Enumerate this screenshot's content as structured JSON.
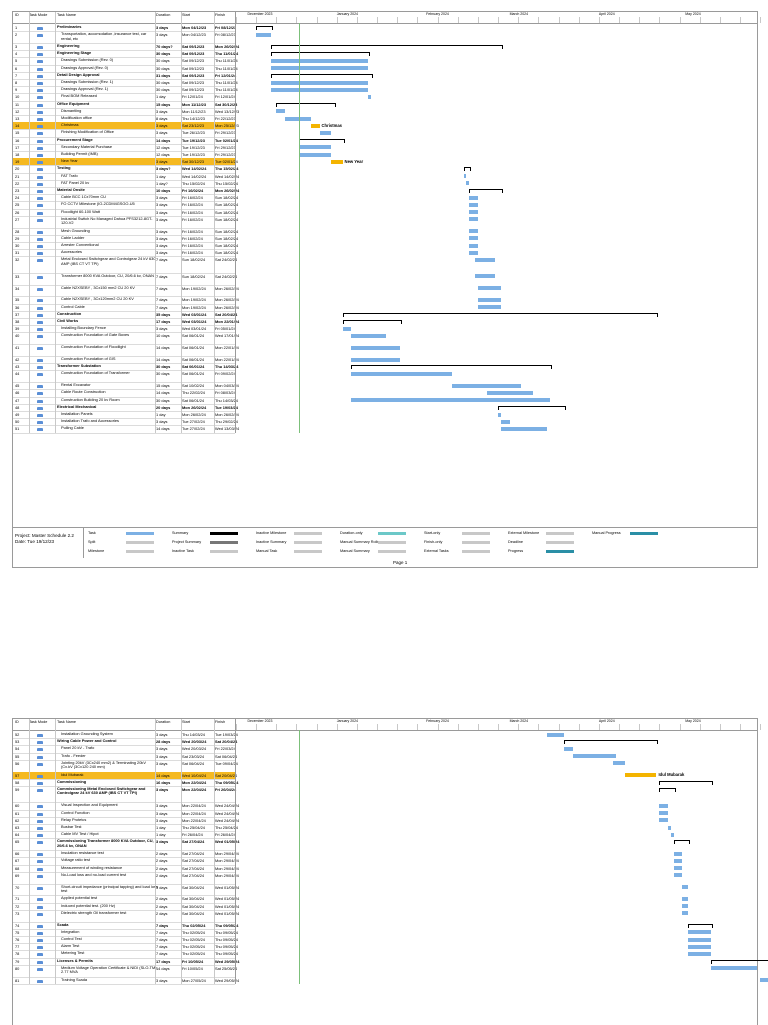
{
  "header": {
    "id": "ID",
    "mode": "Task Mode",
    "name": "Task Name",
    "duration": "Duration",
    "start": "Start",
    "finish": "Finish"
  },
  "months": [
    "December 2023",
    "January 2024",
    "February 2024",
    "March 2024",
    "April 2024",
    "May 2024"
  ],
  "rows1": [
    {
      "id": "1",
      "name": "Preliminaries",
      "dur": "3 days",
      "st": "Mon 04/12/23",
      "fi": "Fri 08/12/23",
      "bold": true
    },
    {
      "id": "2",
      "name": "Transportation, accomodation ,insurance test, car rental, etc",
      "dur": "3 days",
      "st": "Mon 04/12/23",
      "fi": "Fri 08/12/23"
    },
    {
      "id": "3",
      "name": "Engineering",
      "dur": "70 days?",
      "st": "Sat 09/12/23",
      "fi": "Mon 26/02/24",
      "bold": true
    },
    {
      "id": "4",
      "name": "Engineering Stage",
      "dur": "30 days",
      "st": "Sat 09/12/23",
      "fi": "Thu 11/01/24",
      "bold": true
    },
    {
      "id": "5",
      "name": "Drawings Submission (Rev. 0)",
      "dur": "30 days",
      "st": "Sat 09/12/23",
      "fi": "Thu 11/01/24"
    },
    {
      "id": "6",
      "name": "Drawings Approval (Rev. 0)",
      "dur": "30 days",
      "st": "Sat 09/12/23",
      "fi": "Thu 11/01/24"
    },
    {
      "id": "7",
      "name": "Detail Design Approval",
      "dur": "31 days",
      "st": "Sat 09/12/23",
      "fi": "Fri 12/01/24",
      "bold": true
    },
    {
      "id": "8",
      "name": "Drawings Submission (Rev. 1)",
      "dur": "30 days",
      "st": "Sat 09/12/23",
      "fi": "Thu 11/01/24"
    },
    {
      "id": "9",
      "name": "Drawings Approval (Rev. 1)",
      "dur": "30 days",
      "st": "Sat 09/12/23",
      "fi": "Thu 11/01/24"
    },
    {
      "id": "10",
      "name": "Final BOM Released",
      "dur": "1 day",
      "st": "Fri 12/01/24",
      "fi": "Fri 12/01/24"
    },
    {
      "id": "11",
      "name": "Office Equipment",
      "dur": "15 days",
      "st": "Mon 11/12/23",
      "fi": "Sat 30/12/23",
      "bold": true
    },
    {
      "id": "12",
      "name": "Dismantling",
      "dur": "3 days",
      "st": "Mon 11/12/23",
      "fi": "Wed 13/12/23"
    },
    {
      "id": "13",
      "name": "Modification office",
      "dur": "8 days",
      "st": "Thu 14/12/23",
      "fi": "Fri 22/12/23"
    },
    {
      "id": "14",
      "name": "Christmas",
      "dur": "3 days",
      "st": "Sat 23/12/23",
      "fi": "Mon 25/12/23",
      "hl": true
    },
    {
      "id": "15",
      "name": "Finishing Modification of Office",
      "dur": "3 days",
      "st": "Tue 26/12/23",
      "fi": "Fri 29/12/23"
    },
    {
      "id": "16",
      "name": "Procurement Stage",
      "dur": "14 days",
      "st": "Tue 19/12/23",
      "fi": "Tue 02/01/24",
      "bold": true
    },
    {
      "id": "17",
      "name": "Secondary Material Purchase",
      "dur": "12 days",
      "st": "Tue 19/12/23",
      "fi": "Fri 29/12/23"
    },
    {
      "id": "18",
      "name": "Building Permit (IMB)",
      "dur": "12 days",
      "st": "Tue 19/12/23",
      "fi": "Fri 29/12/23"
    },
    {
      "id": "19",
      "name": "New Year",
      "dur": "3 days",
      "st": "Sat 30/12/23",
      "fi": "Tue 02/01/24",
      "hl": true
    },
    {
      "id": "20",
      "name": "Testing",
      "dur": "3 days?",
      "st": "Wed 14/02/24",
      "fi": "Thu 15/02/24",
      "bold": true
    },
    {
      "id": "21",
      "name": "FAT Trafo",
      "dur": "1 day",
      "st": "Wed 14/02/24",
      "fi": "Wed 14/02/24"
    },
    {
      "id": "22",
      "name": "FAT Panel 20 kv",
      "dur": "1 day?",
      "st": "Thu 15/02/24",
      "fi": "Thu 15/02/24"
    },
    {
      "id": "23",
      "name": "Material Onsite",
      "dur": "10 days",
      "st": "Fri 16/02/24",
      "fi": "Mon 26/02/24",
      "bold": true
    },
    {
      "id": "24",
      "name": "Cable BCC 1Cx70mm CU",
      "dur": "3 days",
      "st": "Fri 16/02/24",
      "fi": "Sun 18/02/24"
    },
    {
      "id": "25",
      "name": "FO CCTV Milestone (IO-2CDM4GSGO-U5",
      "dur": "3 days",
      "st": "Fri 16/02/24",
      "fi": "Sun 18/02/24"
    },
    {
      "id": "26",
      "name": "Floodlight 60-100 Watt",
      "dur": "3 days",
      "st": "Fri 16/02/24",
      "fi": "Sun 18/02/24"
    },
    {
      "id": "27",
      "name": "Industrial Switch No Managed Dahua PFS3212-8GT-120-V2",
      "dur": "3 days",
      "st": "Fri 16/02/24",
      "fi": "Sun 18/02/24"
    },
    {
      "id": "28",
      "name": "Mesh Grounding",
      "dur": "3 days",
      "st": "Fri 16/02/24",
      "fi": "Sun 18/02/24"
    },
    {
      "id": "29",
      "name": "Cable Ladder",
      "dur": "3 days",
      "st": "Fri 16/02/24",
      "fi": "Sun 18/02/24"
    },
    {
      "id": "30",
      "name": "Arrester Conventional",
      "dur": "3 days",
      "st": "Fri 16/02/24",
      "fi": "Sun 18/02/24"
    },
    {
      "id": "31",
      "name": "Accessories",
      "dur": "3 days",
      "st": "Fri 16/02/24",
      "fi": "Sun 18/02/24"
    },
    {
      "id": "32",
      "name": "Metal Enclosed Switchgear and Controlgear 24 kV 630 AMP (IBS CT VT TPI)",
      "dur": "7 days",
      "st": "Sun 18/02/24",
      "fi": "Sat 24/02/24"
    },
    {
      "id": "33",
      "name": "Transformer 8000 KVA Outdoor, CU, 20/6.6 kv, ONAN",
      "dur": "7 days",
      "st": "Sun 18/02/24",
      "fi": "Sat 24/02/24"
    },
    {
      "id": "34",
      "name": "Cable N2XSEBY , 3Cx150 mm2 CU 20 KV",
      "dur": "7 days",
      "st": "Mon 19/02/24",
      "fi": "Mon 26/02/24"
    },
    {
      "id": "35",
      "name": "Cable N2XSEBY , 3Cx120mm2 CU 20 KV",
      "dur": "7 days",
      "st": "Mon 19/02/24",
      "fi": "Mon 26/02/24"
    },
    {
      "id": "36",
      "name": "Control Cable",
      "dur": "7 days",
      "st": "Mon 19/02/24",
      "fi": "Mon 26/02/24"
    },
    {
      "id": "37",
      "name": "Construction",
      "dur": "35 days",
      "st": "Wed 03/01/24",
      "fi": "Sat 20/04/24",
      "bold": true
    },
    {
      "id": "38",
      "name": "Civil Works",
      "dur": "17 days",
      "st": "Wed 03/01/24",
      "fi": "Mon 22/01/24",
      "bold": true
    },
    {
      "id": "39",
      "name": "Installing Boundary Fence",
      "dur": "3 days",
      "st": "Wed 03/01/24",
      "fi": "Fri 05/01/24"
    },
    {
      "id": "40",
      "name": "Construction Foundation of Gate Boxes",
      "dur": "10 days",
      "st": "Sat 06/01/24",
      "fi": "Wed 17/01/24"
    },
    {
      "id": "41",
      "name": "Construction Foundation of Floodlight",
      "dur": "14 days",
      "st": "Sat 06/01/24",
      "fi": "Mon 22/01/24"
    },
    {
      "id": "42",
      "name": "Construction Foundation of GIS",
      "dur": "14 days",
      "st": "Sat 06/01/24",
      "fi": "Mon 22/01/24"
    },
    {
      "id": "43",
      "name": "Transformer Substation",
      "dur": "30 days",
      "st": "Sat 06/01/24",
      "fi": "Thu 14/03/24",
      "bold": true
    },
    {
      "id": "44",
      "name": "Construction Foundation of Transformer",
      "dur": "30 days",
      "st": "Sat 06/01/24",
      "fi": "Fri 09/02/24"
    },
    {
      "id": "45",
      "name": "Rental Excavator",
      "dur": "15 days",
      "st": "Sat 10/02/24",
      "fi": "Mon 04/03/24"
    },
    {
      "id": "46",
      "name": "Cable Route Construction",
      "dur": "14 days",
      "st": "Thu 22/02/24",
      "fi": "Fri 08/03/24"
    },
    {
      "id": "47",
      "name": "Construction Building 20 kv Room",
      "dur": "30 days",
      "st": "Sat 06/01/24",
      "fi": "Thu 14/03/24"
    },
    {
      "id": "48",
      "name": "Electrical Mechanical",
      "dur": "20 days",
      "st": "Mon 26/02/24",
      "fi": "Tue 19/03/24",
      "bold": true
    },
    {
      "id": "49",
      "name": "Installation Panels",
      "dur": "1 day",
      "st": "Mon 26/02/24",
      "fi": "Mon 26/02/24"
    },
    {
      "id": "50",
      "name": "Installation Trafo and Accessories",
      "dur": "3 days",
      "st": "Tue 27/02/24",
      "fi": "Thu 29/02/24"
    },
    {
      "id": "51",
      "name": "Pulling Cable",
      "dur": "14 days",
      "st": "Tue 27/02/24",
      "fi": "Wed 13/03/24"
    }
  ],
  "rows2": [
    {
      "id": "52",
      "name": "Installation Grounding System",
      "dur": "3 days",
      "st": "Thu 14/03/24",
      "fi": "Tue 19/03/24"
    },
    {
      "id": "53",
      "name": "Wiring Cable Power and Control",
      "dur": "28 days",
      "st": "Wed 20/03/24",
      "fi": "Sat 20/04/24",
      "bold": true
    },
    {
      "id": "54",
      "name": "Panel 20 kV - Trafo",
      "dur": "3 days",
      "st": "Wed 20/03/24",
      "fi": "Fri 22/03/24"
    },
    {
      "id": "55",
      "name": "Trafo - Feeder",
      "dur": "3 days",
      "st": "Sat 23/03/24",
      "fi": "Sat 06/04/24"
    },
    {
      "id": "56",
      "name": "Jointing 20kV (3Cx240 mm2) & Terminating 20kV (Cx.kV (3Cx120 240 mm)",
      "dur": "3 days",
      "st": "Sat 06/04/24",
      "fi": "Tue 09/04/24"
    },
    {
      "id": "57",
      "name": "Idul Mubarak",
      "dur": "14 days",
      "st": "Wed 10/04/24",
      "fi": "Sat 20/04/24",
      "hl": true
    },
    {
      "id": "58",
      "name": "Commissioning",
      "dur": "16 days",
      "st": "Mon 22/04/24",
      "fi": "Thu 09/05/24",
      "bold": true
    },
    {
      "id": "59",
      "name": "Commissioning Metal Enclosed Switchgear and Controlgear 24 kV 630 AMP (IBS CT VT TPI)",
      "dur": "3 days",
      "st": "Mon 22/04/24",
      "fi": "Fri 26/04/24",
      "bold": true
    },
    {
      "id": "60",
      "name": "Visual Inspection and Equipment",
      "dur": "3 days",
      "st": "Mon 22/04/24",
      "fi": "Wed 24/04/24"
    },
    {
      "id": "61",
      "name": "Control Function",
      "dur": "3 days",
      "st": "Mon 22/04/24",
      "fi": "Wed 24/04/24"
    },
    {
      "id": "62",
      "name": "Relay Protetcs",
      "dur": "3 days",
      "st": "Mon 22/04/24",
      "fi": "Wed 24/04/24"
    },
    {
      "id": "63",
      "name": "Busbar Test",
      "dur": "1 day",
      "st": "Thu 25/04/24",
      "fi": "Thu 25/04/24"
    },
    {
      "id": "64",
      "name": "Cable MV Test / Hipot",
      "dur": "1 day",
      "st": "Fri 26/04/24",
      "fi": "Fri 26/04/24"
    },
    {
      "id": "65",
      "name": "Commissioning Transformer 8000 KVA Outdoor, CU, 20/6.6 kv, ONAN",
      "dur": "3 days",
      "st": "Sat 27/04/24",
      "fi": "Wed 01/05/24",
      "bold": true
    },
    {
      "id": "66",
      "name": "Insulation resistance test",
      "dur": "2 days",
      "st": "Sat 27/04/24",
      "fi": "Mon 29/04/24"
    },
    {
      "id": "67",
      "name": "Voltage ratio test",
      "dur": "2 days",
      "st": "Sat 27/04/24",
      "fi": "Mon 29/04/24"
    },
    {
      "id": "68",
      "name": "Measurement of winding resistance",
      "dur": "2 days",
      "st": "Sat 27/04/24",
      "fi": "Mon 29/04/24"
    },
    {
      "id": "69",
      "name": "No-Load loss and no-load current test",
      "dur": "2 days",
      "st": "Sat 27/04/24",
      "fi": "Mon 29/04/24"
    },
    {
      "id": "70",
      "name": "Short-circuit impedance (principal tapping) and load loss test",
      "dur": "3 days",
      "st": "Sat 30/04/24",
      "fi": "Wed 01/05/24"
    },
    {
      "id": "71",
      "name": "Applied potential test",
      "dur": "2 days",
      "st": "Sat 30/04/24",
      "fi": "Wed 01/05/24"
    },
    {
      "id": "72",
      "name": "Induced potential test. (200 Hz)",
      "dur": "2 days",
      "st": "Sat 30/04/24",
      "fi": "Wed 01/05/24"
    },
    {
      "id": "73",
      "name": "Dielectric strength Oil transformer test",
      "dur": "2 days",
      "st": "Sat 30/04/24",
      "fi": "Wed 01/05/24"
    },
    {
      "id": "74",
      "name": "Scada",
      "dur": "7 days",
      "st": "Thu 02/05/24",
      "fi": "Thu 09/05/24",
      "bold": true
    },
    {
      "id": "75",
      "name": "Integration",
      "dur": "7 days",
      "st": "Thu 02/05/24",
      "fi": "Thu 09/05/24"
    },
    {
      "id": "76",
      "name": "Control Test",
      "dur": "7 days",
      "st": "Thu 02/05/24",
      "fi": "Thu 09/05/24"
    },
    {
      "id": "77",
      "name": "Alarm Test",
      "dur": "7 days",
      "st": "Thu 02/05/24",
      "fi": "Thu 09/05/24"
    },
    {
      "id": "78",
      "name": "Metering Test",
      "dur": "7 days",
      "st": "Thu 02/05/24",
      "fi": "Thu 09/05/24"
    },
    {
      "id": "79",
      "name": "Licenses & Permits",
      "dur": "17 days",
      "st": "Fri 10/05/24",
      "fi": "Wed 29/05/24",
      "bold": true
    },
    {
      "id": "80",
      "name": "Medium Voltage Operation Certificate & NIDI (SLO-TM) 2.77 MVA",
      "dur": "14 days",
      "st": "Fri 10/05/24",
      "fi": "Sat 25/05/24"
    },
    {
      "id": "81",
      "name": "Training Scada",
      "dur": "3 days",
      "st": "Mon 27/05/24",
      "fi": "Wed 29/05/24"
    }
  ],
  "labels": {
    "christmas": "Christmas",
    "newyear": "New Year",
    "idul": "Idul Mubarak"
  },
  "legend": {
    "project": "Project: Master Schedule 2.2",
    "date": "Date: Tue 19/12/23",
    "items": [
      "Task",
      "Split",
      "Milestone",
      "Summary",
      "Project Summary",
      "Inactive Task",
      "Inactive Milestone",
      "Inactive Summary",
      "Manual Task",
      "Duration-only",
      "Manual Summary Rollup",
      "Manual Summary",
      "Start-only",
      "Finish-only",
      "External Tasks",
      "External Milestone",
      "Deadline",
      "Progress",
      "Manual Progress"
    ]
  },
  "page_number": "Page 1",
  "colors": {
    "task": "#7cb0e4",
    "critical": "#f4b400",
    "today": "#7cc07a"
  }
}
